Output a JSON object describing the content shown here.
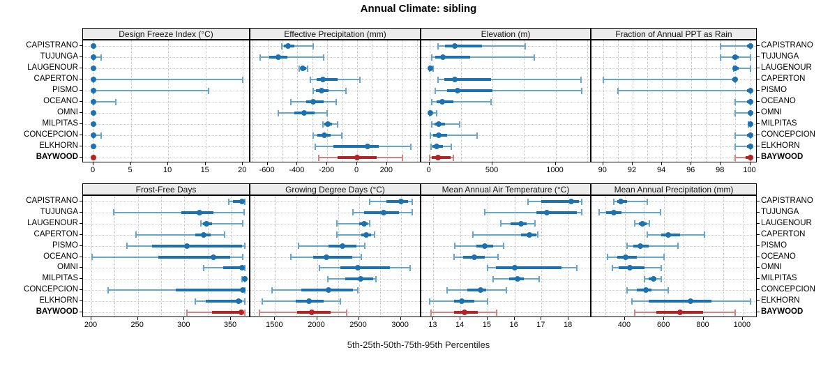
{
  "title": "Annual Climate: sibling",
  "caption": "5th-25th-50th-75th-95th Percentiles",
  "chart_data": {
    "type": "scatter",
    "subtype": "trellis-percentile-dot-plot",
    "percentiles_shown": [
      "5th",
      "25th",
      "50th",
      "75th",
      "95th"
    ],
    "sites": [
      "CAPISTRANO",
      "TUJUNGA",
      "LAUGENOUR",
      "CAPERTON",
      "PISMO",
      "OCEANO",
      "OMNI",
      "MILPITAS",
      "CONCEPCION",
      "ELKHORN",
      "BAYWOOD"
    ],
    "highlight_site": "BAYWOOD",
    "colors": {
      "series": "#1c72b0",
      "series_light": "#62a6d1",
      "highlight": "#b32323",
      "highlight_light": "#d4837e",
      "grid": "#c6c6c6",
      "strip_bg": "#ececec",
      "frame": "#000000"
    },
    "panels": [
      {
        "title": "Design Freeze Index (°C)",
        "trellis_row": 0,
        "xlim": [
          -1.4,
          21
        ],
        "ticks": [
          0,
          5,
          10,
          15,
          20
        ],
        "grid_step": 5,
        "values": [
          [
            0,
            0,
            0,
            0,
            0
          ],
          [
            0,
            0,
            0,
            0,
            1
          ],
          [
            0,
            0,
            0,
            0,
            0
          ],
          [
            0,
            0,
            0,
            0,
            20
          ],
          [
            0,
            0,
            0,
            0,
            15.4
          ],
          [
            0,
            0,
            0,
            0,
            3
          ],
          [
            0,
            0,
            0,
            0,
            0
          ],
          [
            0,
            0,
            0,
            0,
            0
          ],
          [
            0,
            0,
            0,
            0,
            1
          ],
          [
            0,
            0,
            0,
            0,
            0
          ],
          [
            0,
            0,
            0,
            0,
            0
          ]
        ]
      },
      {
        "title": "Effective Precipitation (mm)",
        "trellis_row": 0,
        "xlim": [
          -715,
          430
        ],
        "ticks": [
          -600,
          -400,
          -200,
          0,
          200
        ],
        "grid_step": 100,
        "values": [
          [
            -505,
            -490,
            -465,
            -420,
            -295
          ],
          [
            -650,
            -590,
            -530,
            -465,
            -225
          ],
          [
            -390,
            -380,
            -365,
            -340,
            -330
          ],
          [
            -315,
            -270,
            -230,
            -130,
            20
          ],
          [
            -295,
            -275,
            -240,
            -190,
            -75
          ],
          [
            -445,
            -340,
            -295,
            -225,
            -140
          ],
          [
            -530,
            -420,
            -355,
            -285,
            -200
          ],
          [
            -230,
            -218,
            -195,
            -168,
            -130
          ],
          [
            -295,
            -268,
            -222,
            -175,
            -105
          ],
          [
            -280,
            -160,
            70,
            145,
            360
          ],
          [
            -255,
            -130,
            0,
            130,
            305
          ]
        ]
      },
      {
        "title": "Elevation (m)",
        "trellis_row": 0,
        "xlim": [
          -65,
          1285
        ],
        "ticks": [
          0,
          500,
          1000
        ],
        "grid_step": 250,
        "values": [
          [
            65,
            125,
            200,
            415,
            760
          ],
          [
            20,
            48,
            108,
            320,
            830
          ],
          [
            1,
            2,
            5,
            10,
            30
          ],
          [
            65,
            115,
            200,
            490,
            1200
          ],
          [
            45,
            140,
            225,
            500,
            1210
          ],
          [
            15,
            57,
            100,
            190,
            490
          ],
          [
            1,
            2,
            5,
            20,
            55
          ],
          [
            20,
            38,
            72,
            123,
            240
          ],
          [
            5,
            28,
            72,
            142,
            375
          ],
          [
            10,
            25,
            57,
            105,
            175
          ],
          [
            3,
            20,
            70,
            165,
            190
          ]
        ]
      },
      {
        "title": "Fraction of Annual PPT as Rain",
        "trellis_row": 0,
        "xlim": [
          89.2,
          100.5
        ],
        "ticks": [
          90,
          92,
          94,
          96,
          98,
          100
        ],
        "grid_step": 1,
        "values": [
          [
            98,
            99.8,
            100,
            100,
            100
          ],
          [
            98,
            98.8,
            99,
            99.2,
            100
          ],
          [
            98.9,
            99,
            99,
            99.2,
            100
          ],
          [
            90,
            98.8,
            99,
            99,
            99
          ],
          [
            91,
            99.8,
            100,
            100,
            100
          ],
          [
            99,
            99.8,
            100,
            100,
            100
          ],
          [
            99,
            99.9,
            100,
            100,
            100
          ],
          [
            99.9,
            100,
            100,
            100,
            100
          ],
          [
            99,
            99.8,
            100,
            100,
            100
          ],
          [
            99,
            99.8,
            100,
            100,
            100
          ],
          [
            99,
            99.7,
            100,
            100,
            100
          ]
        ]
      },
      {
        "title": "Frost-Free Days",
        "trellis_row": 1,
        "xlim": [
          191,
          371
        ],
        "ticks": [
          200,
          250,
          300,
          350
        ],
        "grid_step": 25,
        "values": [
          [
            348,
            352,
            362,
            364,
            365
          ],
          [
            224,
            297,
            316,
            331,
            364
          ],
          [
            318,
            320,
            324,
            330,
            363
          ],
          [
            248,
            312,
            321,
            328,
            343
          ],
          [
            238,
            265,
            303,
            362,
            365
          ],
          [
            201,
            272,
            331,
            349,
            363
          ],
          [
            321,
            342,
            362,
            364,
            365
          ],
          [
            362,
            364,
            365,
            365,
            365
          ],
          [
            218,
            291,
            363,
            365,
            365
          ],
          [
            312,
            323,
            358,
            362,
            365
          ],
          [
            303,
            330,
            361,
            363,
            365
          ]
        ]
      },
      {
        "title": "Growing Degree Days (°C)",
        "trellis_row": 1,
        "xlim": [
          1205,
          3245
        ],
        "ticks": [
          1500,
          2000,
          2500,
          3000
        ],
        "grid_step": 250,
        "values": [
          [
            2630,
            2825,
            3005,
            3085,
            3135
          ],
          [
            2430,
            2560,
            2795,
            2980,
            3135
          ],
          [
            2235,
            2500,
            2560,
            2600,
            2630
          ],
          [
            2235,
            2530,
            2585,
            2650,
            2685
          ],
          [
            1780,
            2135,
            2305,
            2475,
            2570
          ],
          [
            1685,
            1950,
            2110,
            2420,
            2530
          ],
          [
            2025,
            2275,
            2490,
            2870,
            3115
          ],
          [
            2125,
            2335,
            2520,
            2670,
            2705
          ],
          [
            1465,
            1815,
            2140,
            2430,
            2490
          ],
          [
            1345,
            1745,
            1905,
            2080,
            2275
          ],
          [
            1315,
            1765,
            1940,
            2165,
            2355
          ]
        ]
      },
      {
        "title": "Mean Annual Air Temperature (°C)",
        "trellis_row": 1,
        "xlim": [
          12.55,
          18.85
        ],
        "ticks": [
          13,
          14,
          15,
          16,
          17,
          18
        ],
        "grid_step": 1,
        "values": [
          [
            16.5,
            17.0,
            18.1,
            18.4,
            18.5
          ],
          [
            14.9,
            16.8,
            17.2,
            18.3,
            18.5
          ],
          [
            15.5,
            15.85,
            16.25,
            16.45,
            16.75
          ],
          [
            14.45,
            16.25,
            16.55,
            16.8,
            16.85
          ],
          [
            13.8,
            14.6,
            14.9,
            15.2,
            15.6
          ],
          [
            13.75,
            14.1,
            14.5,
            14.9,
            15.4
          ],
          [
            15.0,
            15.3,
            16.0,
            17.75,
            18.3
          ],
          [
            15.2,
            15.8,
            16.1,
            16.35,
            16.9
          ],
          [
            13.5,
            14.25,
            14.75,
            14.95,
            15.7
          ],
          [
            12.85,
            13.75,
            14.05,
            14.5,
            15.0
          ],
          [
            12.9,
            13.75,
            14.15,
            14.65,
            15.35
          ]
        ]
      },
      {
        "title": "Mean Annual Precipitation (mm)",
        "trellis_row": 1,
        "xlim": [
          230,
          1075
        ],
        "ticks": [
          400,
          600,
          800,
          1000
        ],
        "grid_step": 100,
        "values": [
          [
            345,
            360,
            380,
            410,
            515
          ],
          [
            270,
            305,
            344,
            382,
            580
          ],
          [
            450,
            470,
            490,
            510,
            525
          ],
          [
            513,
            585,
            620,
            680,
            805
          ],
          [
            410,
            442,
            478,
            520,
            670
          ],
          [
            310,
            360,
            405,
            460,
            600
          ],
          [
            335,
            370,
            425,
            500,
            585
          ],
          [
            500,
            520,
            545,
            560,
            585
          ],
          [
            410,
            460,
            505,
            535,
            620
          ],
          [
            435,
            520,
            735,
            840,
            1040
          ],
          [
            450,
            560,
            680,
            800,
            960
          ]
        ]
      }
    ]
  }
}
